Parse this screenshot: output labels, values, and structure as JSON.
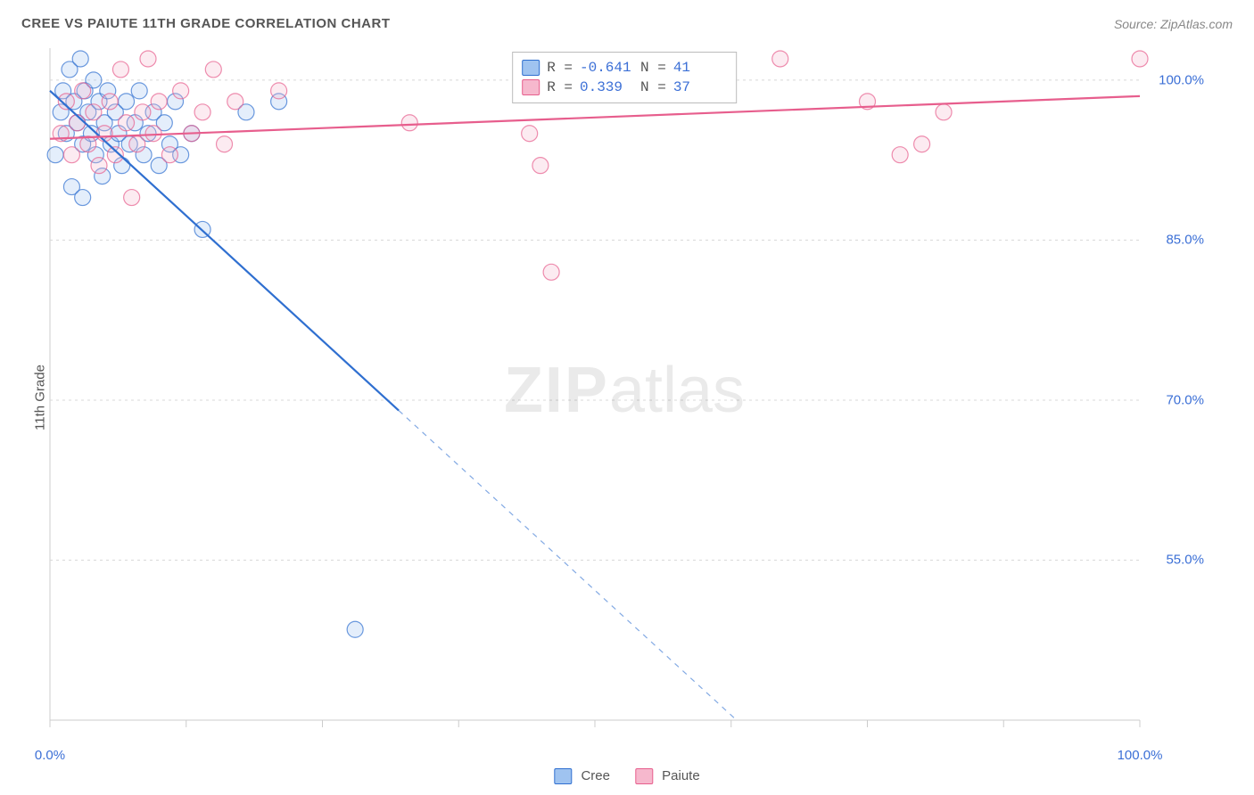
{
  "title": "CREE VS PAIUTE 11TH GRADE CORRELATION CHART",
  "source": "Source: ZipAtlas.com",
  "yaxis_label": "11th Grade",
  "watermark_bold": "ZIP",
  "watermark_light": "atlas",
  "chart": {
    "type": "scatter",
    "background_color": "#ffffff",
    "grid_color": "#d8d8d8",
    "axis_color": "#cccccc",
    "xlim": [
      0,
      100
    ],
    "ylim": [
      40,
      103
    ],
    "x_ticks": [
      0,
      12.5,
      25,
      37.5,
      50,
      62.5,
      75,
      87.5,
      100
    ],
    "x_tick_labels": {
      "0": "0.0%",
      "100": "100.0%"
    },
    "y_gridlines": [
      55,
      70,
      85,
      100
    ],
    "y_tick_labels": {
      "55": "55.0%",
      "70": "70.0%",
      "85": "85.0%",
      "100": "100.0%"
    },
    "marker_radius": 9,
    "marker_fill_opacity": 0.28,
    "marker_stroke_width": 1.2,
    "line_width": 2.2
  },
  "series": [
    {
      "name": "Cree",
      "color_stroke": "#2f6fd0",
      "color_fill": "#9fc3f0",
      "R": "-0.641",
      "N": "41",
      "trend": {
        "x1": 0,
        "y1": 99,
        "x2": 63,
        "y2": 40,
        "solid_until_x": 32
      },
      "points": [
        [
          0.5,
          93
        ],
        [
          1,
          97
        ],
        [
          1.2,
          99
        ],
        [
          1.5,
          95
        ],
        [
          1.8,
          101
        ],
        [
          2,
          90
        ],
        [
          2.2,
          98
        ],
        [
          2.5,
          96
        ],
        [
          2.8,
          102
        ],
        [
          3,
          94
        ],
        [
          3.2,
          99
        ],
        [
          3.5,
          97
        ],
        [
          3.8,
          95
        ],
        [
          4,
          100
        ],
        [
          4.2,
          93
        ],
        [
          4.5,
          98
        ],
        [
          4.8,
          91
        ],
        [
          5,
          96
        ],
        [
          5.3,
          99
        ],
        [
          5.6,
          94
        ],
        [
          6,
          97
        ],
        [
          6.3,
          95
        ],
        [
          6.6,
          92
        ],
        [
          7,
          98
        ],
        [
          7.3,
          94
        ],
        [
          7.8,
          96
        ],
        [
          8.2,
          99
        ],
        [
          8.6,
          93
        ],
        [
          9,
          95
        ],
        [
          9.5,
          97
        ],
        [
          10,
          92
        ],
        [
          10.5,
          96
        ],
        [
          11,
          94
        ],
        [
          11.5,
          98
        ],
        [
          12,
          93
        ],
        [
          13,
          95
        ],
        [
          14,
          86
        ],
        [
          18,
          97
        ],
        [
          21,
          98
        ],
        [
          28,
          48.5
        ],
        [
          3,
          89
        ]
      ]
    },
    {
      "name": "Paiute",
      "color_stroke": "#e75e8d",
      "color_fill": "#f6b8cd",
      "R": "0.339",
      "N": "37",
      "trend": {
        "x1": 0,
        "y1": 94.5,
        "x2": 100,
        "y2": 98.5,
        "solid_until_x": 100
      },
      "points": [
        [
          1,
          95
        ],
        [
          1.5,
          98
        ],
        [
          2,
          93
        ],
        [
          2.5,
          96
        ],
        [
          3,
          99
        ],
        [
          3.5,
          94
        ],
        [
          4,
          97
        ],
        [
          4.5,
          92
        ],
        [
          5,
          95
        ],
        [
          5.5,
          98
        ],
        [
          6,
          93
        ],
        [
          6.5,
          101
        ],
        [
          7,
          96
        ],
        [
          7.5,
          89
        ],
        [
          8,
          94
        ],
        [
          8.5,
          97
        ],
        [
          9,
          102
        ],
        [
          9.5,
          95
        ],
        [
          10,
          98
        ],
        [
          11,
          93
        ],
        [
          12,
          99
        ],
        [
          13,
          95
        ],
        [
          14,
          97
        ],
        [
          15,
          101
        ],
        [
          16,
          94
        ],
        [
          17,
          98
        ],
        [
          21,
          99
        ],
        [
          33,
          96
        ],
        [
          44,
          95
        ],
        [
          45,
          92
        ],
        [
          46,
          82
        ],
        [
          67,
          102
        ],
        [
          75,
          98
        ],
        [
          78,
          93
        ],
        [
          80,
          94
        ],
        [
          82,
          97
        ],
        [
          100,
          102
        ]
      ]
    }
  ],
  "legend": {
    "label_series1": "Cree",
    "label_series2": "Paiute"
  },
  "stat_labels": {
    "R": "R =",
    "N": "N ="
  }
}
